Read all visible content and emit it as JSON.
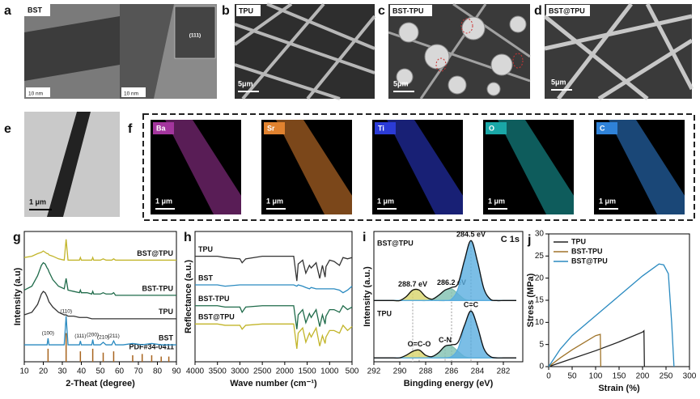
{
  "panels": {
    "a": {
      "label": "a",
      "title": "BST",
      "scale": [
        "10 nm",
        "10 nm"
      ],
      "inset": "(111)"
    },
    "b": {
      "label": "b",
      "title": "TPU",
      "scale": "5μm"
    },
    "c": {
      "label": "c",
      "title": "BST-TPU",
      "scale": "5μm"
    },
    "d": {
      "label": "d",
      "title": "BST@TPU",
      "scale": "5μm"
    },
    "e": {
      "label": "e",
      "scale": "1 μm"
    },
    "f": {
      "label": "f",
      "maps": [
        {
          "element": "Ba",
          "color": "#a3359d",
          "scale": "1 μm"
        },
        {
          "element": "Sr",
          "color": "#e0822f",
          "scale": "1 μm"
        },
        {
          "element": "Ti",
          "color": "#2b3bd6",
          "scale": "1 μm"
        },
        {
          "element": "O",
          "color": "#1aa7a7",
          "scale": "1 μm"
        },
        {
          "element": "C",
          "color": "#2f82d8",
          "scale": "1 μm"
        }
      ]
    }
  },
  "chart_data": [
    {
      "type": "line",
      "label": "g",
      "xlabel": "2-Theat (degree)",
      "ylabel": "Intensity (a.u)",
      "series_labels": "right",
      "x": [
        10,
        14,
        17,
        19,
        20,
        21,
        22,
        22.5,
        23,
        25,
        28,
        31,
        32,
        33,
        36,
        39,
        39.5,
        40,
        43,
        45.5,
        46,
        46.5,
        50,
        51.5,
        53,
        56,
        57,
        58,
        62,
        67,
        72,
        77,
        82,
        86,
        90
      ],
      "xlim": [
        10,
        90
      ],
      "xticks": [
        10,
        20,
        30,
        40,
        50,
        60,
        70,
        80,
        90
      ],
      "ylim": [
        0,
        100
      ],
      "series": [
        {
          "name": "BST@TPU",
          "color": "#c2b52a",
          "values": [
            80,
            81,
            83,
            84,
            85,
            84,
            83,
            83,
            82,
            81,
            79,
            78,
            94,
            78,
            78,
            78,
            80,
            78,
            78,
            78,
            80,
            78,
            78,
            79,
            78,
            78,
            79,
            78,
            78,
            78,
            78,
            78,
            78,
            78,
            78
          ]
        },
        {
          "name": "BST-TPU",
          "color": "#1f6b4a",
          "values": [
            55,
            58,
            66,
            74,
            76,
            75,
            72,
            71,
            69,
            63,
            58,
            56,
            64,
            55,
            54,
            53,
            55,
            53,
            53,
            52,
            54,
            52,
            52,
            53,
            52,
            52,
            53,
            51,
            51,
            51,
            51,
            51,
            51,
            51,
            51
          ]
        },
        {
          "name": "TPU",
          "color": "#333333",
          "values": [
            36,
            38,
            44,
            52,
            54,
            53,
            50,
            48,
            46,
            42,
            38,
            36,
            36,
            35,
            35,
            34,
            34,
            34,
            34,
            33,
            33,
            33,
            33,
            33,
            33,
            33,
            33,
            33,
            33,
            33,
            33,
            33,
            33,
            33,
            33
          ]
        },
        {
          "name": "BST",
          "color": "#2a8ac0",
          "values": [
            13,
            13,
            13,
            13,
            13,
            13,
            13,
            18,
            13,
            13,
            13,
            13,
            35,
            13,
            13,
            13,
            16,
            13,
            13,
            13,
            17,
            13,
            13,
            15,
            13,
            13,
            16,
            13,
            13,
            14,
            13,
            14,
            13,
            13,
            13
          ]
        }
      ],
      "reference": {
        "name": "PDF#34-0411",
        "color": "#a8641e",
        "x": [
          22.5,
          32,
          39.5,
          46,
          51.5,
          57,
          67,
          72,
          77,
          82,
          86
        ],
        "values": [
          10,
          22,
          8,
          10,
          7,
          8,
          5,
          6,
          5,
          4,
          4
        ]
      },
      "annotations": [
        {
          "text": "(100)",
          "x": 22.5
        },
        {
          "text": "(110)",
          "x": 32
        },
        {
          "text": "(111)",
          "x": 39.5
        },
        {
          "text": "(200)",
          "x": 46
        },
        {
          "text": "(210)",
          "x": 51.5
        },
        {
          "text": "(211)",
          "x": 57
        }
      ]
    },
    {
      "type": "line",
      "label": "h",
      "xlabel": "Wave number (cm⁻¹)",
      "ylabel": "Reflectance (a.u.)",
      "series_labels": "left",
      "x": [
        4000,
        3700,
        3500,
        3330,
        3000,
        2950,
        2870,
        2500,
        2000,
        1800,
        1730,
        1700,
        1600,
        1530,
        1450,
        1410,
        1300,
        1220,
        1160,
        1100,
        1080,
        1000,
        900,
        780,
        700,
        600,
        500
      ],
      "xlim": [
        4000,
        500
      ],
      "xticks": [
        4000,
        3500,
        3000,
        2500,
        2000,
        1500,
        1000,
        500
      ],
      "ylim": [
        0,
        100
      ],
      "series": [
        {
          "name": "TPU",
          "color": "#333333",
          "values": [
            81,
            81,
            81,
            80,
            79,
            76,
            79,
            81,
            81,
            81,
            62,
            75,
            78,
            68,
            74,
            72,
            76,
            64,
            74,
            65,
            73,
            78,
            77,
            74,
            80,
            79,
            80
          ]
        },
        {
          "name": "BST",
          "color": "#2a8ac0",
          "values": [
            59,
            59,
            59,
            58,
            59,
            59,
            59,
            59,
            59,
            59,
            58,
            59,
            58,
            57,
            56,
            57,
            56,
            56,
            56,
            56,
            56,
            56,
            56,
            55,
            53,
            55,
            58
          ]
        },
        {
          "name": "BST-TPU",
          "color": "#1f6b4a",
          "values": [
            43,
            43,
            43,
            42,
            42,
            38,
            42,
            43,
            43,
            43,
            25,
            36,
            40,
            30,
            37,
            34,
            40,
            27,
            36,
            29,
            35,
            40,
            40,
            38,
            43,
            40,
            42
          ]
        },
        {
          "name": "BST@TPU",
          "color": "#c2b52a",
          "values": [
            29,
            29,
            29,
            28,
            28,
            25,
            28,
            29,
            29,
            29,
            10,
            22,
            26,
            15,
            22,
            19,
            26,
            12,
            20,
            14,
            19,
            24,
            24,
            22,
            28,
            24,
            27
          ]
        }
      ]
    },
    {
      "type": "line",
      "label": "i",
      "xlabel": "Bingding energy (eV)",
      "ylabel": "Intensity (a.u.)",
      "series_labels": "peak",
      "smooth": true,
      "annotation": "C 1s",
      "x": [
        292,
        291.5,
        291,
        290.5,
        290,
        289.5,
        289,
        288.5,
        288,
        287.5,
        287,
        286.5,
        286,
        285.5,
        285,
        284.5,
        284,
        283.5,
        283,
        282.5,
        282,
        281.5,
        281
      ],
      "xlim": [
        292,
        280.5
      ],
      "xticks": [
        292,
        290,
        288,
        286,
        284,
        282
      ],
      "ylim": [
        0,
        100
      ],
      "series": [
        {
          "name": "288.7 eV",
          "color": "#d8d46a",
          "fill": true,
          "values": [
            47,
            47,
            47,
            47,
            47,
            50,
            55,
            55,
            50,
            48,
            47,
            47,
            47,
            47,
            47,
            47,
            47,
            47,
            47,
            47,
            47,
            47,
            47
          ]
        },
        {
          "name": "286.2 eV",
          "color": "#7fc0b0",
          "fill": true,
          "values": [
            47,
            47,
            47,
            47,
            47,
            47,
            47,
            47,
            47,
            48,
            51,
            55,
            56,
            52,
            48,
            47,
            47,
            47,
            47,
            47,
            47,
            47,
            47
          ]
        },
        {
          "name": "284.5 eV",
          "color": "#5aaee0",
          "fill": true,
          "values": [
            47,
            47,
            47,
            47,
            47,
            47,
            47,
            47,
            47,
            47,
            47,
            47,
            48,
            56,
            77,
            93,
            77,
            56,
            48,
            47,
            47,
            47,
            47
          ]
        },
        {
          "name": "BST@TPU",
          "color": "#111111",
          "values": [
            47,
            47,
            47,
            47,
            47,
            50,
            55,
            55,
            50,
            48,
            51,
            55,
            57,
            60,
            78,
            93,
            77,
            56,
            48,
            47,
            47,
            47,
            47
          ]
        },
        {
          "name": "O=C-O",
          "color": "#d8d46a",
          "fill": true,
          "values": [
            3,
            3,
            3,
            3,
            3,
            5,
            8,
            9,
            5,
            3,
            3,
            3,
            3,
            3,
            3,
            3,
            3,
            3,
            3,
            3,
            3,
            3,
            3
          ]
        },
        {
          "name": "C-N",
          "color": "#7fc0b0",
          "fill": true,
          "values": [
            3,
            3,
            3,
            3,
            3,
            3,
            3,
            3,
            3,
            4,
            7,
            12,
            12,
            8,
            4,
            3,
            3,
            3,
            3,
            3,
            3,
            3,
            3
          ]
        },
        {
          "name": "C=C",
          "color": "#5aaee0",
          "fill": true,
          "values": [
            3,
            3,
            3,
            3,
            3,
            3,
            3,
            3,
            3,
            3,
            3,
            3,
            4,
            10,
            27,
            39,
            27,
            10,
            4,
            3,
            3,
            3,
            3
          ]
        },
        {
          "name": "TPU",
          "color": "#111111",
          "values": [
            3,
            3,
            3,
            3,
            3,
            5,
            8,
            9,
            5,
            4,
            7,
            12,
            13,
            15,
            28,
            39,
            27,
            10,
            4,
            3,
            3,
            3,
            3
          ]
        }
      ]
    },
    {
      "type": "line",
      "label": "j",
      "xlabel": "Strain (%)",
      "ylabel": "Stress (MPa)",
      "legend": "upper left",
      "xlim": [
        0,
        300
      ],
      "xticks": [
        0,
        50,
        100,
        150,
        200,
        250,
        300
      ],
      "ylim": [
        0,
        30
      ],
      "yticks": [
        0,
        5,
        10,
        15,
        20,
        25,
        30
      ],
      "series": [
        {
          "name": "TPU",
          "color": "#222222",
          "x": [
            0,
            50,
            100,
            150,
            200,
            203,
            204
          ],
          "values": [
            0,
            1.8,
            3.6,
            5.6,
            7.8,
            8.1,
            0
          ]
        },
        {
          "name": "BST-TPU",
          "color": "#a0742a",
          "x": [
            0,
            25,
            50,
            75,
            100,
            110,
            111
          ],
          "values": [
            0,
            2,
            3.8,
            5.4,
            7,
            7.3,
            0
          ]
        },
        {
          "name": "BST@TPU",
          "color": "#2a8ac0",
          "x": [
            0,
            25,
            50,
            100,
            150,
            200,
            235,
            245,
            255,
            262,
            267
          ],
          "values": [
            0,
            4,
            7,
            11.5,
            16,
            20.5,
            23.2,
            23,
            21,
            10,
            0
          ]
        }
      ]
    }
  ]
}
